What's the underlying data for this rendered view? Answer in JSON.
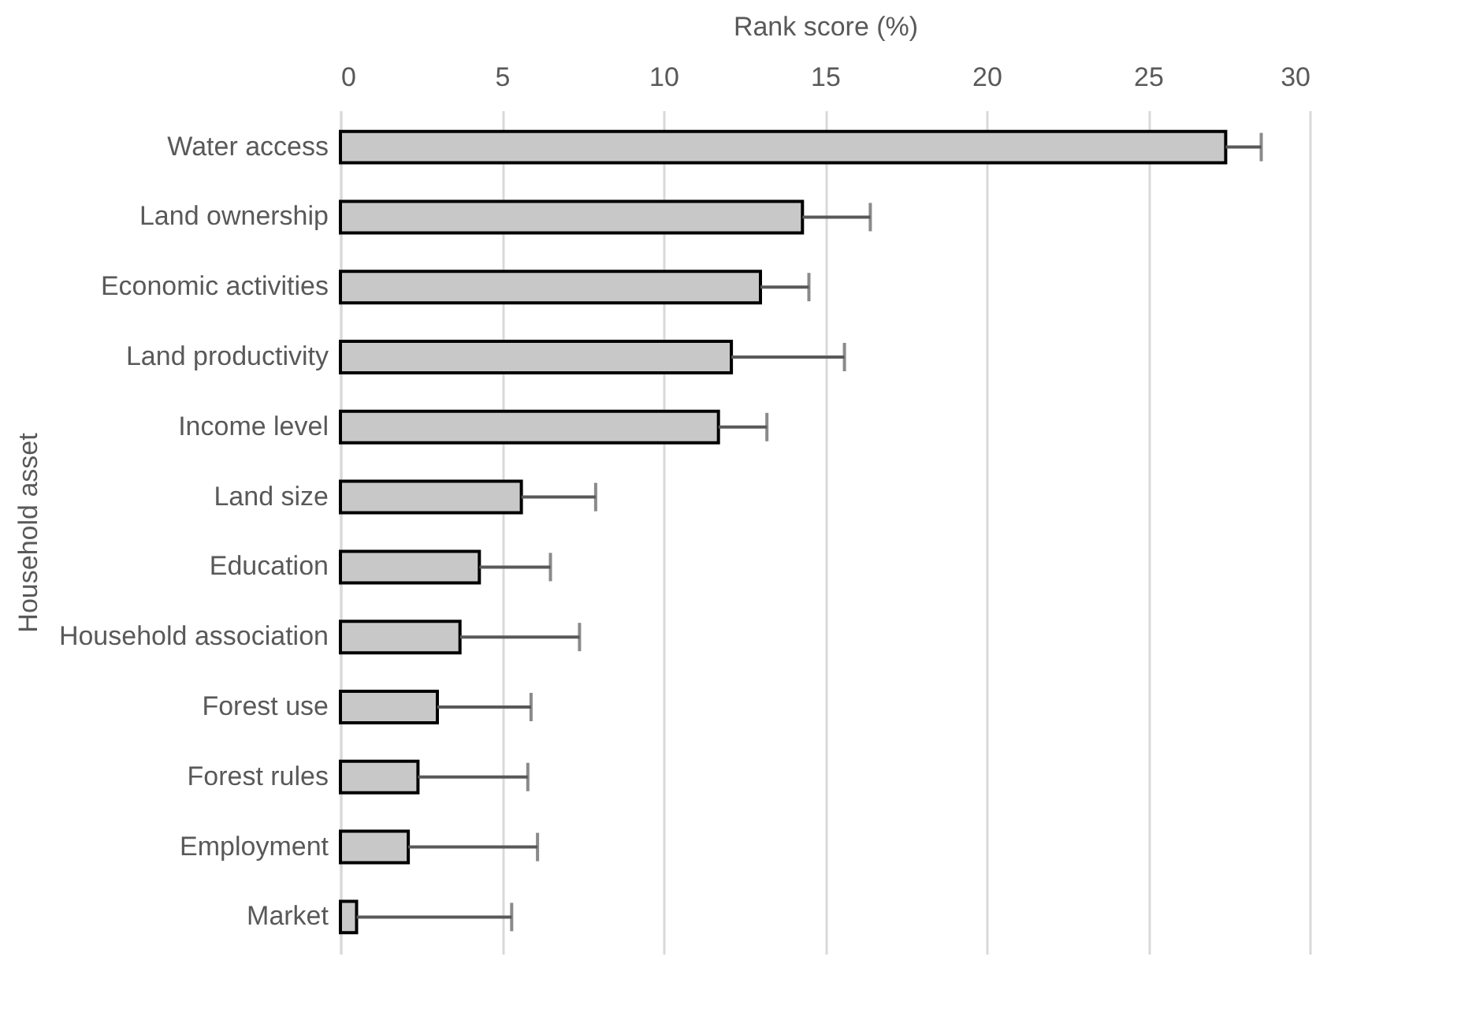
{
  "chart_data": {
    "type": "bar",
    "orientation": "horizontal",
    "xlabel": "Rank score (%)",
    "ylabel": "Household asset",
    "categories": [
      "Water access",
      "Land ownership",
      "Economic activities",
      "Land productivity",
      "Income level",
      "Land size",
      "Education",
      "Household association",
      "Forest use",
      "Forest rules",
      "Employment",
      "Market"
    ],
    "series": [
      {
        "color": "#c8c8c8",
        "values": [
          27.4,
          14.3,
          13.0,
          12.1,
          11.7,
          5.6,
          4.3,
          3.7,
          3.0,
          2.4,
          2.1,
          0.5
        ],
        "errors": [
          [
            27.4,
            28.5
          ],
          [
            14.3,
            16.4
          ],
          [
            13.0,
            14.5
          ],
          [
            12.1,
            15.6
          ],
          [
            11.7,
            13.2
          ],
          [
            5.6,
            7.9
          ],
          [
            4.3,
            6.5
          ],
          [
            3.7,
            7.4
          ],
          [
            3.0,
            5.9
          ],
          [
            2.4,
            5.8
          ],
          [
            2.1,
            6.1
          ],
          [
            0.5,
            5.3
          ]
        ]
      }
    ],
    "xlim": [
      0,
      30
    ],
    "xticks": [
      0,
      5,
      10,
      15,
      20,
      25,
      30
    ],
    "grid": "x"
  }
}
